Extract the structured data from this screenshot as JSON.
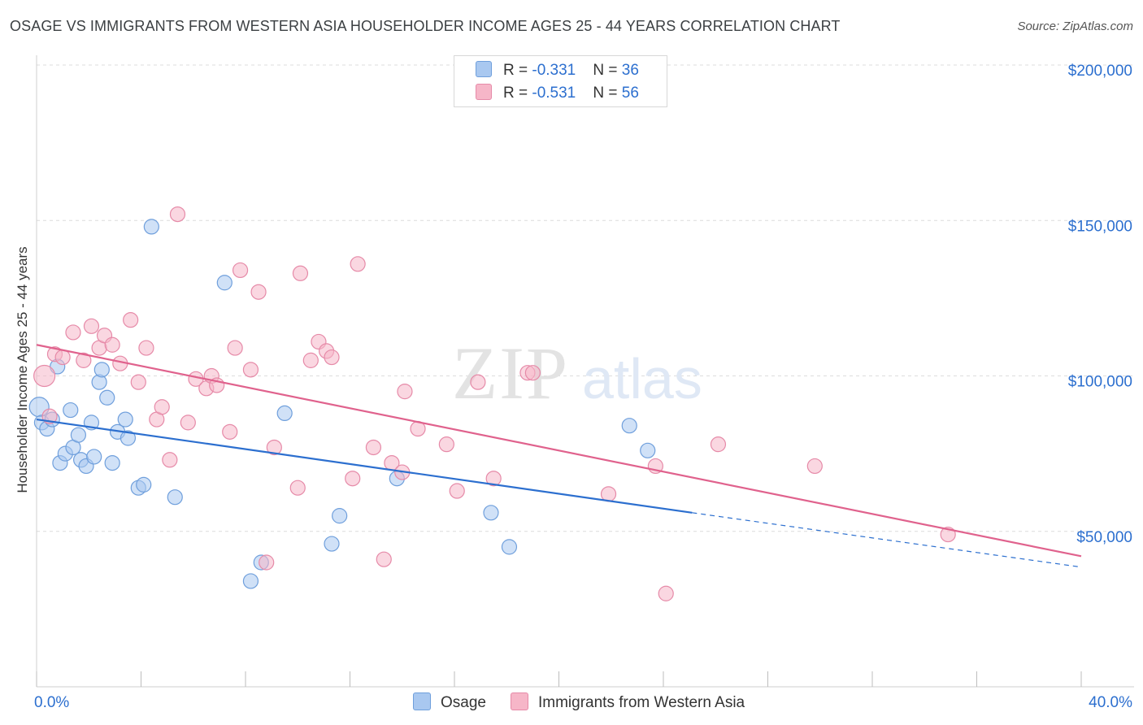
{
  "title": "OSAGE VS IMMIGRANTS FROM WESTERN ASIA HOUSEHOLDER INCOME AGES 25 - 44 YEARS CORRELATION CHART",
  "source": "Source: ZipAtlas.com",
  "watermark": {
    "zip": "ZIP",
    "atlas": "atlas"
  },
  "legend_top": {
    "rows": [
      {
        "r_label": "R = ",
        "r_value": "-0.331",
        "n_label": "N = ",
        "n_value": "36",
        "color": "#a9c8f0"
      },
      {
        "r_label": "R = ",
        "r_value": "-0.531",
        "n_label": "N = ",
        "n_value": "56",
        "color": "#f6b6c8"
      }
    ]
  },
  "legend_bottom": {
    "osage": "Osage",
    "immigrants": "Immigrants from Western Asia"
  },
  "colors": {
    "osage_fill": "#a9c8f0",
    "osage_stroke": "#6f9fdc",
    "osage_line": "#2c6fcf",
    "imm_fill": "#f6b6c8",
    "imm_stroke": "#e68aa8",
    "imm_line": "#e0628d",
    "axis_label": "#2c6fcf",
    "grid": "#dcdcdc"
  },
  "chart_data": {
    "type": "scatter",
    "title": "OSAGE VS IMMIGRANTS FROM WESTERN ASIA HOUSEHOLDER INCOME AGES 25 - 44 YEARS CORRELATION CHART",
    "xlabel": "",
    "ylabel": "Householder Income Ages 25 - 44 years",
    "xlim": [
      0,
      40
    ],
    "ylim": [
      0,
      200000
    ],
    "x_tick_labels": [
      "0.0%",
      "40.0%"
    ],
    "y_ticks": [
      50000,
      100000,
      150000,
      200000
    ],
    "y_tick_labels": [
      "$50,000",
      "$100,000",
      "$150,000",
      "$200,000"
    ],
    "grid": true,
    "series": [
      {
        "name": "Osage",
        "points": [
          [
            0.1,
            90000
          ],
          [
            0.2,
            85000
          ],
          [
            0.4,
            83000
          ],
          [
            0.6,
            86000
          ],
          [
            0.8,
            103000
          ],
          [
            0.9,
            72000
          ],
          [
            1.1,
            75000
          ],
          [
            1.3,
            89000
          ],
          [
            1.4,
            77000
          ],
          [
            1.6,
            81000
          ],
          [
            1.7,
            73000
          ],
          [
            1.9,
            71000
          ],
          [
            2.1,
            85000
          ],
          [
            2.2,
            74000
          ],
          [
            2.4,
            98000
          ],
          [
            2.5,
            102000
          ],
          [
            2.7,
            93000
          ],
          [
            2.9,
            72000
          ],
          [
            3.1,
            82000
          ],
          [
            3.4,
            86000
          ],
          [
            3.5,
            80000
          ],
          [
            3.9,
            64000
          ],
          [
            4.1,
            65000
          ],
          [
            4.4,
            148000
          ],
          [
            5.3,
            61000
          ],
          [
            7.2,
            130000
          ],
          [
            8.2,
            34000
          ],
          [
            8.6,
            40000
          ],
          [
            9.5,
            88000
          ],
          [
            11.6,
            55000
          ],
          [
            11.3,
            46000
          ],
          [
            13.8,
            67000
          ],
          [
            17.4,
            56000
          ],
          [
            18.1,
            45000
          ],
          [
            22.7,
            84000
          ],
          [
            23.4,
            76000
          ]
        ],
        "trend": {
          "x": [
            0,
            25.1
          ],
          "y": [
            86000,
            56000
          ],
          "dashed_to": [
            40,
            38500
          ]
        }
      },
      {
        "name": "Immigrants from Western Asia",
        "points": [
          [
            0.3,
            100000
          ],
          [
            0.5,
            87000
          ],
          [
            0.7,
            107000
          ],
          [
            1.0,
            106000
          ],
          [
            1.4,
            114000
          ],
          [
            1.8,
            105000
          ],
          [
            2.1,
            116000
          ],
          [
            2.4,
            109000
          ],
          [
            2.6,
            113000
          ],
          [
            2.9,
            110000
          ],
          [
            3.2,
            104000
          ],
          [
            3.6,
            118000
          ],
          [
            3.9,
            98000
          ],
          [
            4.2,
            109000
          ],
          [
            4.6,
            86000
          ],
          [
            4.8,
            90000
          ],
          [
            5.1,
            73000
          ],
          [
            5.4,
            152000
          ],
          [
            5.8,
            85000
          ],
          [
            6.1,
            99000
          ],
          [
            6.5,
            96000
          ],
          [
            6.7,
            100000
          ],
          [
            6.9,
            97000
          ],
          [
            7.4,
            82000
          ],
          [
            7.6,
            109000
          ],
          [
            7.8,
            134000
          ],
          [
            8.2,
            102000
          ],
          [
            8.5,
            127000
          ],
          [
            9.1,
            77000
          ],
          [
            10.0,
            64000
          ],
          [
            10.1,
            133000
          ],
          [
            10.5,
            105000
          ],
          [
            10.8,
            111000
          ],
          [
            11.1,
            108000
          ],
          [
            11.3,
            106000
          ],
          [
            12.1,
            67000
          ],
          [
            12.3,
            136000
          ],
          [
            12.9,
            77000
          ],
          [
            13.3,
            41000
          ],
          [
            13.6,
            72000
          ],
          [
            14.0,
            69000
          ],
          [
            14.1,
            95000
          ],
          [
            14.6,
            83000
          ],
          [
            15.7,
            78000
          ],
          [
            16.1,
            63000
          ],
          [
            16.9,
            98000
          ],
          [
            17.5,
            67000
          ],
          [
            18.8,
            101000
          ],
          [
            19.0,
            101000
          ],
          [
            21.9,
            62000
          ],
          [
            23.7,
            71000
          ],
          [
            24.1,
            30000
          ],
          [
            26.1,
            78000
          ],
          [
            29.8,
            71000
          ],
          [
            34.9,
            49000
          ],
          [
            8.8,
            40000
          ]
        ],
        "trend": {
          "x": [
            0,
            40
          ],
          "y": [
            110000,
            42000
          ]
        }
      }
    ]
  }
}
